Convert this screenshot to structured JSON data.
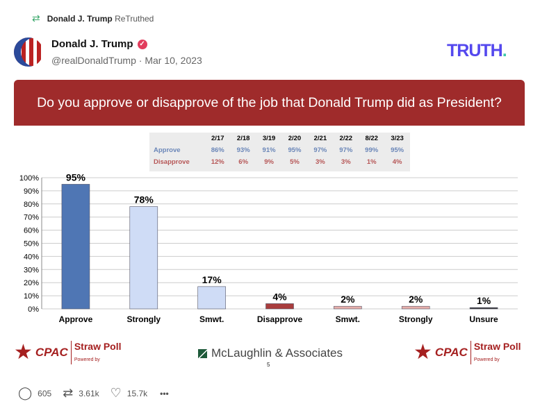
{
  "retruth": {
    "icon": "repost-icon",
    "user": "Donald J. Trump",
    "label": "ReTruthed"
  },
  "post": {
    "author": "Donald J. Trump",
    "verified_icon": "verified-badge-icon",
    "handle": "@realDonaldTrump",
    "separator": "·",
    "date": "Mar 10, 2023"
  },
  "brand": {
    "logo": "TRUTH",
    "dot": ".",
    "color": "#5448ee"
  },
  "image": {
    "title": "Do you approve or disapprove of the job that Donald Trump did as President?",
    "table": {
      "headers": [
        "2/17",
        "2/18",
        "3/19",
        "2/20",
        "2/21",
        "2/22",
        "8/22",
        "3/23"
      ],
      "rows": [
        {
          "label": "Approve",
          "values": [
            "86%",
            "93%",
            "91%",
            "95%",
            "97%",
            "97%",
            "99%",
            "95%"
          ]
        },
        {
          "label": "Disapprove",
          "values": [
            "12%",
            "6%",
            "9%",
            "5%",
            "3%",
            "3%",
            "1%",
            "4%"
          ]
        }
      ]
    },
    "footer": {
      "cpac": "CPAC",
      "straw_poll": "Straw Poll",
      "powered_by": "Powered by",
      "ml": "McLaughlin & Associates",
      "page": "5"
    }
  },
  "chart_data": {
    "type": "bar",
    "categories": [
      "Approve",
      "Strongly",
      "Smwt.",
      "Disapprove",
      "Smwt.",
      "Strongly",
      "Unsure"
    ],
    "values": [
      95,
      78,
      17,
      4,
      2,
      2,
      1
    ],
    "labels": [
      "95%",
      "78%",
      "17%",
      "4%",
      "2%",
      "2%",
      "1%"
    ],
    "colors": [
      "#4f76b4",
      "#cfdcf6",
      "#cfdcf6",
      "#a93d3d",
      "#e8b0ac",
      "#e8b0ac",
      "#333333"
    ],
    "ylim": [
      0,
      100
    ],
    "yticks": [
      "0%",
      "10%",
      "20%",
      "30%",
      "40%",
      "50%",
      "60%",
      "70%",
      "80%",
      "90%",
      "100%"
    ],
    "grid": true
  },
  "actions": {
    "replies": "605",
    "retruths": "3.61k",
    "likes": "15.7k",
    "more": "•••"
  }
}
